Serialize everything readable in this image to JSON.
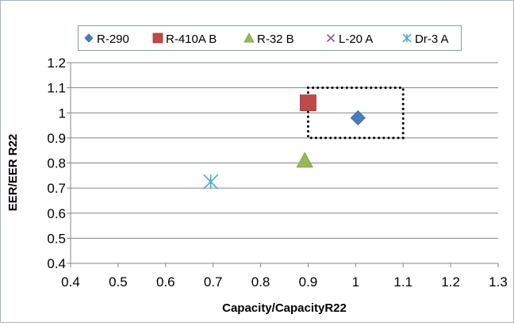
{
  "chart_data": {
    "type": "scatter",
    "title": "",
    "xlabel": "Capacity/CapacityR22",
    "ylabel": "EER/EER R22",
    "xlim": [
      0.4,
      1.3
    ],
    "ylim": [
      0.4,
      1.2
    ],
    "xticks": [
      "0.4",
      "0.5",
      "0.6",
      "0.7",
      "0.8",
      "0.9",
      "1",
      "1.1",
      "1.2",
      "1.3"
    ],
    "yticks": [
      "0.4",
      "0.5",
      "0.6",
      "0.7",
      "0.8",
      "0.9",
      "1",
      "1.1",
      "1.2"
    ],
    "grid": true,
    "legend_position": "top",
    "series": [
      {
        "name": "R-290",
        "marker": "diamond",
        "color": "#4a7ebb",
        "x": [
          1.005
        ],
        "y": [
          0.98
        ]
      },
      {
        "name": "R-410A B",
        "marker": "square",
        "color": "#be4b48",
        "x": [
          0.9
        ],
        "y": [
          1.04
        ]
      },
      {
        "name": "R-32 B",
        "marker": "triangle",
        "color": "#98b954",
        "x": [
          0.893
        ],
        "y": [
          0.81
        ]
      },
      {
        "name": "L-20 A",
        "marker": "x",
        "color": "#7d60a0",
        "x": [],
        "y": []
      },
      {
        "name": "Dr-3 A",
        "marker": "star",
        "color": "#4bacc6",
        "x": [
          0.695
        ],
        "y": [
          0.725
        ]
      }
    ],
    "annotations": [
      {
        "type": "dotted-rectangle",
        "x_range": [
          0.9,
          1.1
        ],
        "y_range": [
          0.9,
          1.1
        ],
        "color": "#000000"
      }
    ]
  }
}
